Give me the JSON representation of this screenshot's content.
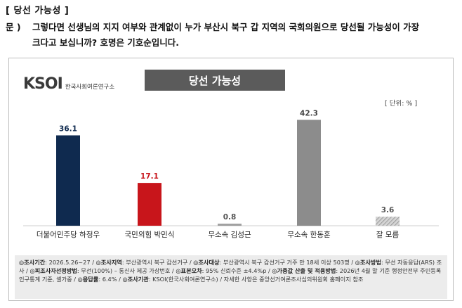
{
  "header": {
    "section_title": "[ 당선 가능성 ]",
    "question_marker": "문 )",
    "question_line1": "그렇다면 선생님의 지지 여부와 관계없이 누가 부산시 북구 갑 지역의 국회의원으로 당선될 가능성이 가장",
    "question_line2": "크다고 보십니까? 호명은 기호순입니다."
  },
  "card": {
    "logo_text": "KSOI",
    "logo_sub": "한국사회여론연구소",
    "unit_label": "[ 단위: % ]"
  },
  "chart_data": {
    "type": "bar",
    "title": "당선 가능성",
    "categories": [
      "더불어민주당 하정우",
      "국민의힘 박민식",
      "무소속 김성근",
      "무소속 한동훈",
      "잘 모름"
    ],
    "values": [
      36.1,
      17.1,
      0.8,
      42.3,
      3.6
    ],
    "value_labels": [
      "36.1",
      "17.1",
      "0.8",
      "42.3",
      "3.6"
    ],
    "colors": [
      "#0f2a4f",
      "#c8151b",
      "#9e9e9e",
      "#8c8c8c",
      "#b8b8b8"
    ],
    "value_label_colors": [
      "#0f2a4f",
      "#c8151b",
      "#555555",
      "#444444",
      "#555555"
    ],
    "ylim": [
      0,
      50
    ],
    "grid": false,
    "xlabel": "",
    "ylabel": ""
  },
  "footnote": {
    "k1": "◎조사기간",
    "v1": ": 2026.5.26~27 / ",
    "k2": "◎조사지역",
    "v2": ": 부산광역시 북구 갑선거구 / ",
    "k3": "◎조사대상",
    "v3": ": 부산광역시 북구 갑선거구 거주 만 18세 이상 503명 / ",
    "k4": "◎조사방법",
    "v4": ": 무선 자동응답(ARS) 조사 / ",
    "k5": "◎피조사자선정방법",
    "v5": ": 무선(100%) – 통신사 제공 가상번호 / ",
    "k6": "◎표본오차",
    "v6": ": 95% 신뢰수준 ±4.4%p / ",
    "k7": "◎가중값 산출 및 적용방법",
    "v7": ": 2026년 4월 말 기준 행정안전부 주민등록 인구통계 기준, 셀가중 / ",
    "k8": "◎응답률",
    "v8": ": 6.4% / ",
    "k9": "◎조사기관",
    "v9": ": KSOI(한국사회여론연구소) / 자세한 사항은 중앙선거여론조사심의위원회 홈페이지 참조"
  }
}
